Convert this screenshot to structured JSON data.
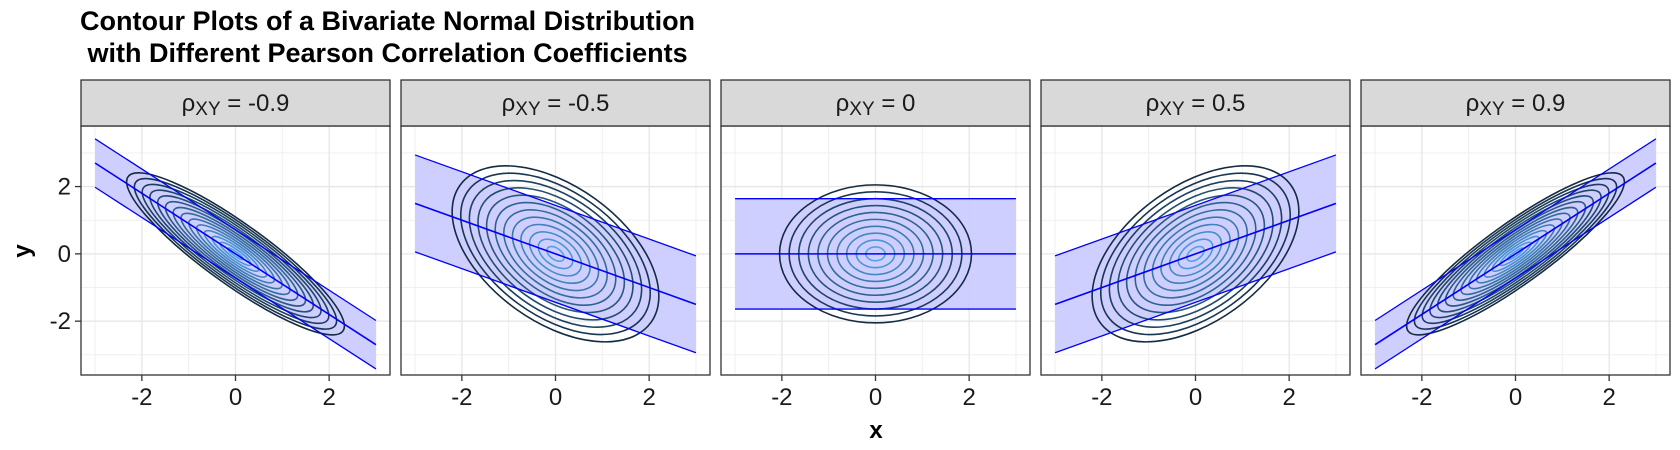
{
  "chart_data": {
    "type": "contour",
    "title_lines": [
      "Contour Plots of a Bivariate Normal Distribution",
      " with Different Pearson Correlation Coefficients"
    ],
    "xlabel": "x",
    "ylabel": "y",
    "xlim": [
      -3.3,
      3.3
    ],
    "ylim": [
      -3.6,
      3.8
    ],
    "x_ticks": [
      -2,
      0,
      2
    ],
    "y_ticks": [
      -2,
      0,
      2
    ],
    "x_tick_labels": [
      "-2",
      "0",
      "2"
    ],
    "y_tick_labels": [
      "-2",
      "0",
      "2"
    ],
    "grid": true,
    "regression_line_x_range": [
      -3,
      3
    ],
    "band_color": "#ccccff",
    "line_color": "#0000ff",
    "contour_color_dark": "#132b43",
    "contour_color_light": "#56b1f7",
    "strip_fill": "#d9d9d9",
    "panels": [
      {
        "strip_symbol": "ρ",
        "strip_subscript": "XY",
        "strip_value": " = -0.9",
        "rho": -0.9,
        "band_halfwidth": 0.72,
        "contour_outer_radius": 2.5,
        "contour_levels": 14
      },
      {
        "strip_symbol": "ρ",
        "strip_subscript": "XY",
        "strip_value": " = -0.5",
        "rho": -0.5,
        "band_halfwidth": 1.44,
        "contour_outer_radius": 2.5,
        "contour_levels": 12
      },
      {
        "strip_symbol": "ρ",
        "strip_subscript": "XY",
        "strip_value": " = 0",
        "rho": 0,
        "band_halfwidth": 1.64,
        "contour_outer_radius": 2.05,
        "contour_levels": 10
      },
      {
        "strip_symbol": "ρ",
        "strip_subscript": "XY",
        "strip_value": " = 0.5",
        "rho": 0.5,
        "band_halfwidth": 1.44,
        "contour_outer_radius": 2.5,
        "contour_levels": 12
      },
      {
        "strip_symbol": "ρ",
        "strip_subscript": "XY",
        "strip_value": " = 0.9",
        "rho": 0.9,
        "band_halfwidth": 0.72,
        "contour_outer_radius": 2.5,
        "contour_levels": 14
      }
    ]
  }
}
